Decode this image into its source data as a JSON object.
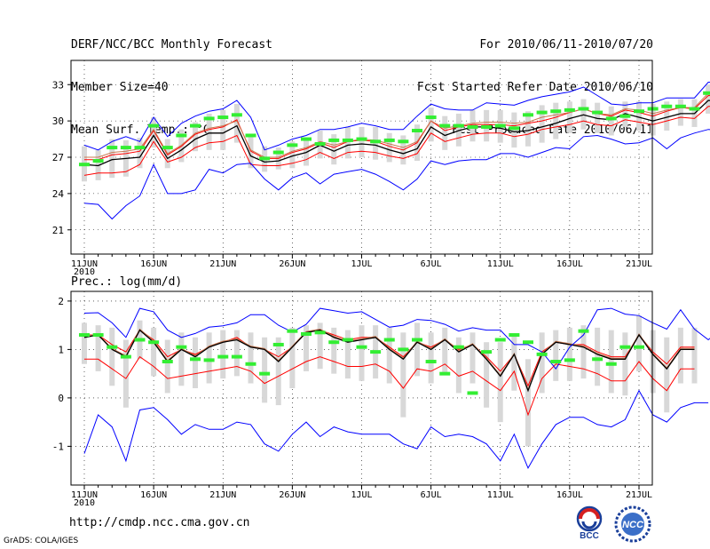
{
  "header": {
    "left": [
      "DERF/NCC/BCC Monthly Forecast",
      "Member Size=40",
      "Mean Surf. Temp.: °C"
    ],
    "right": [
      "For 2010/06/11-2010/07/20",
      "Fcst Started Refer Date 2010/06/10",
      "Fcst Produced Date 2010/06/11"
    ]
  },
  "footer": {
    "url": "http://cmdp.ncc.cma.gov.cn",
    "credit": "GrADS: COLA/IGES"
  },
  "logos": {
    "left_text": "BCC",
    "right_text": "NCC"
  },
  "colors": {
    "max_min": "#0000ff",
    "mean": "#000000",
    "control": "#c87850",
    "band": "#ff0000",
    "obs": "#33ee33",
    "spread": "#d8d8d8"
  },
  "chart_data": [
    {
      "type": "line",
      "title": "Mean Surf. Temp.: °C",
      "xlabel": "",
      "ylabel": "°C",
      "x_ticks": [
        "11JUN",
        "16JUN",
        "21JUN",
        "26JUN",
        "1JUL",
        "6JUL",
        "11JUL",
        "16JUL",
        "21JUL"
      ],
      "x_year_label": "2010",
      "ylim": [
        19,
        35
      ],
      "y_ticks": [
        21,
        24,
        27,
        30,
        33
      ],
      "series": [
        {
          "name": "max",
          "color": "blue",
          "values": [
            28.0,
            27.6,
            28.3,
            28.7,
            28.3,
            30.3,
            28.7,
            29.8,
            30.4,
            30.8,
            31.0,
            31.7,
            30.3,
            27.6,
            28.0,
            28.5,
            28.8,
            29.3,
            29.3,
            29.5,
            29.8,
            29.6,
            29.3,
            29.3,
            30.4,
            31.4,
            31.0,
            30.9,
            30.9,
            31.5,
            31.4,
            31.3,
            31.7,
            32.0,
            32.2,
            32.4,
            32.8,
            32.1,
            31.4,
            31.3,
            31.5,
            31.5,
            31.9,
            31.9,
            31.9,
            33.2,
            33.2
          ]
        },
        {
          "name": "min",
          "color": "blue",
          "values": [
            23.2,
            23.1,
            21.9,
            23.0,
            23.8,
            26.4,
            24.0,
            24.0,
            24.3,
            26.0,
            25.7,
            26.4,
            26.5,
            25.2,
            24.3,
            25.3,
            25.7,
            24.8,
            25.6,
            25.8,
            26.0,
            25.6,
            25.0,
            24.3,
            25.2,
            26.7,
            26.4,
            26.7,
            26.8,
            26.8,
            27.3,
            27.3,
            27.0,
            27.4,
            27.8,
            27.7,
            28.7,
            28.8,
            28.5,
            28.1,
            28.2,
            28.6,
            27.7,
            28.6,
            29.0,
            29.3,
            29.2
          ]
        },
        {
          "name": "mean",
          "color": "black",
          "values": [
            26.4,
            26.3,
            26.8,
            26.9,
            27.0,
            28.8,
            26.9,
            27.6,
            28.5,
            29.0,
            29.0,
            29.6,
            27.1,
            26.6,
            26.7,
            27.1,
            27.4,
            28.0,
            27.5,
            28.0,
            28.1,
            28.0,
            27.6,
            27.3,
            27.7,
            29.5,
            28.8,
            29.2,
            29.5,
            29.5,
            29.4,
            29.1,
            29.2,
            29.5,
            29.8,
            30.2,
            30.5,
            30.2,
            30.1,
            30.6,
            30.3,
            30.0,
            30.3,
            30.6,
            30.6,
            31.7,
            31.6
          ]
        },
        {
          "name": "control",
          "color": "orange",
          "values": [
            27.0,
            27.0,
            27.4,
            27.5,
            27.7,
            29.3,
            27.3,
            28.0,
            29.0,
            29.4,
            29.6,
            30.0,
            27.6,
            27.0,
            27.0,
            27.5,
            27.8,
            28.3,
            28.0,
            28.3,
            28.5,
            28.4,
            28.1,
            27.8,
            28.3,
            30.0,
            29.4,
            29.6,
            29.8,
            29.9,
            29.9,
            29.8,
            29.9,
            30.3,
            30.5,
            30.7,
            31.0,
            30.6,
            30.5,
            31.0,
            30.9,
            30.6,
            30.9,
            31.1,
            31.1,
            32.3,
            32.2
          ]
        },
        {
          "name": "upper",
          "color": "red",
          "values": [
            26.8,
            26.8,
            27.2,
            27.3,
            27.5,
            29.2,
            27.2,
            27.9,
            28.9,
            29.3,
            29.5,
            30.1,
            27.5,
            26.9,
            26.9,
            27.4,
            27.7,
            28.2,
            27.8,
            28.3,
            28.4,
            28.3,
            27.9,
            27.6,
            28.2,
            30.0,
            29.2,
            29.5,
            29.7,
            29.7,
            29.7,
            29.6,
            29.8,
            30.0,
            30.3,
            30.7,
            31.0,
            30.6,
            30.4,
            30.9,
            30.7,
            30.4,
            30.8,
            31.1,
            31.0,
            32.1,
            32.0
          ]
        },
        {
          "name": "lower",
          "color": "red",
          "values": [
            25.5,
            25.7,
            25.7,
            25.8,
            26.4,
            28.3,
            26.6,
            27.0,
            27.8,
            28.2,
            28.3,
            28.8,
            26.4,
            26.3,
            26.3,
            26.5,
            26.8,
            27.4,
            26.9,
            27.4,
            27.5,
            27.4,
            27.1,
            26.9,
            27.3,
            29.0,
            28.3,
            28.6,
            28.9,
            29.0,
            29.0,
            28.7,
            28.9,
            29.3,
            29.5,
            29.7,
            30.0,
            29.7,
            29.6,
            30.1,
            29.9,
            29.7,
            30.0,
            30.3,
            30.2,
            31.2,
            31.2
          ]
        },
        {
          "name": "observed",
          "color": "green",
          "values": [
            26.4,
            26.7,
            27.8,
            27.8,
            27.8,
            29.6,
            27.8,
            28.8,
            29.6,
            30.2,
            30.3,
            30.5,
            28.8,
            26.9,
            27.4,
            28.0,
            28.5,
            28.1,
            28.4,
            28.4,
            28.5,
            28.3,
            28.4,
            28.3,
            29.2,
            30.3,
            29.6,
            29.6,
            29.5,
            29.5,
            29.6,
            29.4,
            30.5,
            30.7,
            30.8,
            30.9,
            31.0,
            30.7,
            30.2,
            30.4,
            30.8,
            31.0,
            31.2,
            31.2,
            31.0,
            32.3,
            32.2
          ]
        },
        {
          "name": "spread_top",
          "color": "gray",
          "values": [
            27.9,
            27.6,
            28.5,
            28.4,
            28.6,
            30.3,
            28.5,
            29.3,
            29.9,
            30.6,
            30.9,
            31.4,
            28.8,
            27.9,
            27.8,
            28.3,
            28.6,
            29.2,
            28.9,
            29.5,
            29.5,
            29.5,
            29.0,
            28.8,
            29.7,
            31.1,
            30.4,
            30.6,
            30.9,
            30.9,
            30.9,
            30.7,
            30.8,
            31.3,
            31.5,
            31.6,
            31.8,
            31.5,
            31.2,
            31.6,
            31.6,
            31.4,
            31.6,
            31.8,
            31.8,
            33.0,
            32.9
          ]
        },
        {
          "name": "spread_bottom",
          "color": "gray",
          "values": [
            25.0,
            25.1,
            25.3,
            25.4,
            26.1,
            27.8,
            26.1,
            26.6,
            27.5,
            27.6,
            27.6,
            28.2,
            26.1,
            25.8,
            26.0,
            26.1,
            26.3,
            26.9,
            26.4,
            26.9,
            27.0,
            26.8,
            26.6,
            26.4,
            26.7,
            28.3,
            27.6,
            27.9,
            28.3,
            28.3,
            28.2,
            27.8,
            27.9,
            28.2,
            28.5,
            29.0,
            29.3,
            29.0,
            28.8,
            29.5,
            29.2,
            28.8,
            29.2,
            29.6,
            29.5,
            30.6,
            30.5
          ]
        }
      ]
    },
    {
      "type": "line",
      "title": "Prec.: log(mm/d)",
      "xlabel": "",
      "ylabel": "log(mm/d)",
      "x_ticks": [
        "11JUN",
        "16JUN",
        "21JUN",
        "26JUN",
        "1JUL",
        "6JUL",
        "11JUL",
        "16JUL",
        "21JUL"
      ],
      "x_year_label": "2010",
      "ylim": [
        -1.8,
        2.2
      ],
      "y_ticks": [
        -1,
        0,
        1,
        2
      ],
      "series": [
        {
          "name": "max",
          "color": "blue",
          "values": [
            1.75,
            1.76,
            1.55,
            1.25,
            1.85,
            1.78,
            1.4,
            1.25,
            1.33,
            1.46,
            1.49,
            1.55,
            1.72,
            1.72,
            1.5,
            1.36,
            1.52,
            1.85,
            1.8,
            1.75,
            1.78,
            1.62,
            1.46,
            1.5,
            1.62,
            1.6,
            1.52,
            1.38,
            1.45,
            1.4,
            1.4,
            1.1,
            1.1,
            0.95,
            0.6,
            1.05,
            1.3,
            1.82,
            1.85,
            1.73,
            1.7,
            1.55,
            1.42,
            1.82,
            1.42,
            1.2,
            1.45,
            1.45
          ]
        },
        {
          "name": "min",
          "color": "blue",
          "values": [
            -1.15,
            -0.35,
            -0.6,
            -1.3,
            -0.25,
            -0.2,
            -0.45,
            -0.75,
            -0.55,
            -0.65,
            -0.65,
            -0.5,
            -0.55,
            -0.95,
            -1.1,
            -0.75,
            -0.5,
            -0.8,
            -0.6,
            -0.7,
            -0.75,
            -0.75,
            -0.75,
            -0.95,
            -1.05,
            -0.6,
            -0.8,
            -0.75,
            -0.8,
            -0.95,
            -1.3,
            -0.75,
            -1.45,
            -0.95,
            -0.55,
            -0.4,
            -0.4,
            -0.55,
            -0.6,
            -0.45,
            0.15,
            -0.35,
            -0.5,
            -0.2,
            -0.1,
            -0.1
          ]
        },
        {
          "name": "mean",
          "color": "black",
          "values": [
            1.25,
            1.3,
            1.0,
            0.85,
            1.4,
            1.15,
            0.75,
            1.0,
            0.85,
            1.05,
            1.15,
            1.2,
            1.05,
            1.0,
            0.75,
            1.05,
            1.35,
            1.4,
            1.25,
            1.15,
            1.2,
            1.25,
            1.0,
            0.8,
            1.15,
            1.0,
            1.2,
            0.95,
            1.1,
            0.8,
            0.45,
            0.9,
            0.15,
            0.9,
            1.15,
            1.1,
            1.05,
            0.9,
            0.8,
            0.8,
            1.3,
            0.9,
            0.6,
            1.0,
            1.0
          ]
        },
        {
          "name": "control",
          "color": "orange",
          "values": [
            1.28,
            1.31,
            1.02,
            0.87,
            1.42,
            1.18,
            0.77,
            1.02,
            0.87,
            1.07,
            1.17,
            1.22,
            1.07,
            1.02,
            0.77,
            1.07,
            1.37,
            1.42,
            1.27,
            1.17,
            1.22,
            1.27,
            1.02,
            0.82,
            1.17,
            1.02,
            1.22,
            0.97,
            1.12,
            0.82,
            0.47,
            0.92,
            0.17,
            0.92,
            1.17,
            1.12,
            1.07,
            0.92,
            0.82,
            0.82,
            1.32,
            0.92,
            0.62,
            1.02,
            1.02
          ]
        },
        {
          "name": "upper",
          "color": "red",
          "values": [
            1.3,
            1.3,
            1.1,
            0.95,
            1.4,
            1.2,
            0.85,
            1.0,
            0.9,
            1.05,
            1.15,
            1.25,
            1.05,
            1.0,
            0.85,
            1.05,
            1.35,
            1.4,
            1.3,
            1.2,
            1.25,
            1.25,
            1.05,
            0.85,
            1.15,
            1.05,
            1.2,
            1.0,
            1.1,
            0.85,
            0.55,
            0.9,
            0.25,
            0.95,
            1.15,
            1.1,
            1.1,
            0.95,
            0.85,
            0.85,
            1.3,
            0.95,
            0.7,
            1.05,
            1.05
          ]
        },
        {
          "name": "lower",
          "color": "red",
          "values": [
            0.8,
            0.8,
            0.6,
            0.4,
            0.85,
            0.65,
            0.4,
            0.45,
            0.5,
            0.55,
            0.6,
            0.65,
            0.55,
            0.3,
            0.45,
            0.6,
            0.75,
            0.85,
            0.75,
            0.65,
            0.65,
            0.7,
            0.55,
            0.2,
            0.6,
            0.55,
            0.7,
            0.45,
            0.55,
            0.35,
            0.15,
            0.55,
            -0.35,
            0.4,
            0.7,
            0.65,
            0.6,
            0.5,
            0.35,
            0.35,
            0.75,
            0.4,
            0.15,
            0.6,
            0.6
          ]
        },
        {
          "name": "observed",
          "color": "green",
          "values": [
            1.3,
            1.3,
            1.05,
            0.85,
            1.2,
            1.15,
            0.75,
            1.05,
            0.8,
            0.78,
            0.85,
            0.85,
            0.7,
            0.5,
            1.1,
            1.38,
            1.32,
            1.35,
            1.15,
            1.2,
            1.05,
            0.95,
            1.2,
            1.0,
            1.2,
            0.75,
            0.5,
            1.05,
            0.1,
            0.95,
            1.2,
            1.3,
            1.15,
            0.9,
            0.75,
            0.78,
            1.38,
            0.8,
            0.7,
            1.05,
            1.05
          ]
        },
        {
          "name": "spread_top",
          "color": "gray",
          "values": [
            1.55,
            1.5,
            1.45,
            1.2,
            1.6,
            1.45,
            1.2,
            1.35,
            1.25,
            1.35,
            1.4,
            1.4,
            1.35,
            1.25,
            1.25,
            1.45,
            1.5,
            1.55,
            1.45,
            1.4,
            1.5,
            1.5,
            1.45,
            1.35,
            1.55,
            1.35,
            1.45,
            1.25,
            1.35,
            1.15,
            1.15,
            1.3,
            0.8,
            1.35,
            1.4,
            1.45,
            1.5,
            1.45,
            1.4,
            1.35,
            1.7,
            1.4,
            1.25,
            1.45,
            1.45
          ]
        },
        {
          "name": "spread_bottom",
          "color": "gray",
          "values": [
            0.7,
            0.55,
            0.25,
            -0.2,
            0.8,
            0.45,
            0.1,
            0.25,
            0.2,
            0.3,
            0.4,
            0.45,
            0.3,
            -0.1,
            -0.15,
            0.2,
            0.55,
            0.6,
            0.5,
            0.4,
            0.35,
            0.4,
            0.3,
            -0.4,
            0.45,
            0.3,
            0.5,
            0.1,
            0.3,
            -0.2,
            -0.5,
            0.15,
            -1.0,
            0.1,
            0.35,
            0.35,
            0.4,
            0.25,
            0.1,
            0.05,
            0.55,
            0.1,
            -0.3,
            0.3,
            0.3
          ]
        }
      ]
    }
  ]
}
